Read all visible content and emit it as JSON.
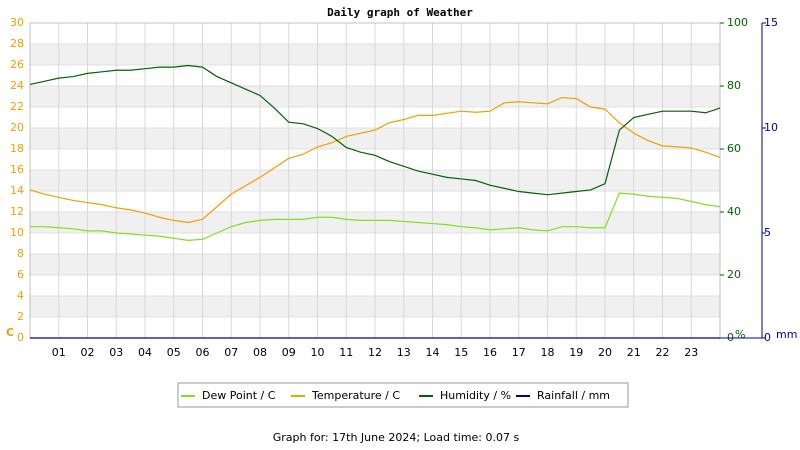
{
  "chart_data": {
    "type": "line",
    "title": "Daily graph of Weather",
    "footer": "Graph for: 17th June 2024; Load time: 0.07 s",
    "y_unit": "C",
    "y2_unit": "%",
    "y3_unit": "mm",
    "x": [
      0,
      0.5,
      1,
      1.5,
      2,
      2.5,
      3,
      3.5,
      4,
      4.5,
      5,
      5.5,
      6,
      6.5,
      7,
      7.5,
      8,
      8.5,
      9,
      9.5,
      10,
      10.5,
      11,
      11.5,
      12,
      12.5,
      13,
      13.5,
      14,
      14.5,
      15,
      15.5,
      16,
      16.5,
      17,
      17.5,
      18,
      18.5,
      19,
      19.5,
      20,
      20.5,
      21,
      21.5,
      22,
      22.5,
      23,
      23.5,
      24
    ],
    "xlim": [
      0,
      24
    ],
    "xticks": [
      {
        "value": 1,
        "label": "01"
      },
      {
        "value": 2,
        "label": "02"
      },
      {
        "value": 3,
        "label": "03"
      },
      {
        "value": 4,
        "label": "04"
      },
      {
        "value": 5,
        "label": "05"
      },
      {
        "value": 6,
        "label": "06"
      },
      {
        "value": 7,
        "label": "07"
      },
      {
        "value": 8,
        "label": "08"
      },
      {
        "value": 9,
        "label": "09"
      },
      10,
      11,
      12,
      13,
      14,
      15,
      16,
      17,
      18,
      19,
      20,
      21,
      22,
      23
    ],
    "ylim": [
      0,
      30
    ],
    "yticks": [
      0,
      2,
      4,
      6,
      8,
      10,
      12,
      14,
      16,
      18,
      20,
      22,
      24,
      26,
      28,
      30
    ],
    "y2lim": [
      0,
      100
    ],
    "y2ticks": [
      0,
      20,
      40,
      60,
      80,
      100
    ],
    "y3lim": [
      0,
      15
    ],
    "y3ticks": [
      0,
      5,
      10,
      15
    ],
    "grid": true,
    "series": [
      {
        "name": "Dew Point / C",
        "color": "#80e020",
        "axis": "y",
        "values": [
          10.6,
          10.6,
          10.5,
          10.4,
          10.2,
          10.2,
          10.0,
          9.9,
          9.8,
          9.7,
          9.5,
          9.3,
          9.4,
          10.0,
          10.6,
          11.0,
          11.2,
          11.3,
          11.3,
          11.3,
          11.5,
          11.5,
          11.3,
          11.2,
          11.2,
          11.2,
          11.1,
          11.0,
          10.9,
          10.8,
          10.6,
          10.5,
          10.3,
          10.4,
          10.5,
          10.3,
          10.2,
          10.6,
          10.6,
          10.5,
          10.5,
          13.8,
          13.7,
          13.5,
          13.4,
          13.3,
          13.0,
          12.7,
          12.5
        ]
      },
      {
        "name": "Temperature / C",
        "color": "#f0a000",
        "axis": "y",
        "values": [
          14.1,
          13.7,
          13.4,
          13.1,
          12.9,
          12.7,
          12.4,
          12.2,
          11.9,
          11.5,
          11.2,
          11.0,
          11.3,
          12.5,
          13.7,
          14.5,
          15.3,
          16.2,
          17.1,
          17.5,
          18.2,
          18.6,
          19.2,
          19.5,
          19.8,
          20.5,
          20.8,
          21.2,
          21.2,
          21.4,
          21.6,
          21.5,
          21.6,
          22.4,
          22.5,
          22.4,
          22.3,
          22.9,
          22.8,
          22.0,
          21.8,
          20.5,
          19.5,
          18.8,
          18.3,
          18.2,
          18.1,
          17.7,
          17.2
        ]
      },
      {
        "name": "Humidity / %",
        "color": "#006400",
        "axis": "y2",
        "values": [
          80.5,
          81.5,
          82.5,
          83,
          84,
          84.5,
          85,
          85,
          85.5,
          86,
          86,
          86.5,
          86,
          83,
          81,
          79,
          77,
          73,
          68.5,
          68,
          66.5,
          64,
          60.5,
          59,
          58,
          56,
          54.5,
          53,
          52,
          51,
          50.5,
          50,
          48.5,
          47.5,
          46.5,
          46,
          45.5,
          46,
          46.5,
          47,
          49,
          66,
          70,
          71,
          72,
          72,
          72,
          71.5,
          73
        ]
      },
      {
        "name": "Rainfall / mm",
        "color": "#0000a0",
        "axis": "y3",
        "values": [
          0,
          0,
          0,
          0,
          0,
          0,
          0,
          0,
          0,
          0,
          0,
          0,
          0,
          0,
          0,
          0,
          0,
          0,
          0,
          0,
          0,
          0,
          0,
          0,
          0,
          0,
          0,
          0,
          0,
          0,
          0,
          0,
          0,
          0,
          0,
          0,
          0,
          0,
          0,
          0,
          0,
          0,
          0,
          0,
          0,
          0,
          0,
          0,
          0
        ]
      }
    ]
  }
}
